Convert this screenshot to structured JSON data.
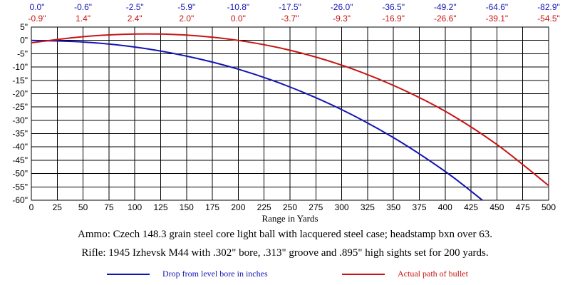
{
  "chart_data": {
    "type": "line",
    "xlabel": "Range in Yards",
    "ylabel": "",
    "xlim": [
      0,
      500
    ],
    "ylim": [
      -60,
      5
    ],
    "grid": true,
    "x_ticks": [
      0,
      25,
      50,
      75,
      100,
      125,
      150,
      175,
      200,
      225,
      250,
      275,
      300,
      325,
      350,
      375,
      400,
      425,
      450,
      475,
      500
    ],
    "y_ticks": [
      5,
      0,
      -5,
      -10,
      -15,
      -20,
      -25,
      -30,
      -35,
      -40,
      -45,
      -50,
      -55,
      -60
    ],
    "y_tick_labels": [
      "5\"",
      "0\"",
      "-5\"",
      "-10\"",
      "-15\"",
      "-20\"",
      "-25\"",
      "-30\"",
      "-35\"",
      "-40\"",
      "-45\"",
      "-50\"",
      "-55\"",
      "-60\""
    ],
    "top_row_drop": [
      "0.0\"",
      "-0.6\"",
      "-2.5\"",
      "-5.9\"",
      "-10.8\"",
      "-17.5\"",
      "-26.0\"",
      "-36.5\"",
      "-49.2\"",
      "-64.6\"",
      "-82.9\""
    ],
    "top_row_path": [
      "-0.9\"",
      "1.4\"",
      "2.4\"",
      "2.0\"",
      "0.0\"",
      "-3.7\"",
      "-9.3\"",
      "-16.9\"",
      "-26.6\"",
      "-39.1\"",
      "-54.5\""
    ],
    "top_row_x": [
      0,
      50,
      100,
      150,
      200,
      250,
      300,
      350,
      400,
      450,
      500
    ],
    "series": [
      {
        "name": "Drop from level bore in inches",
        "color": "#1414b4",
        "x": [
          0,
          50,
          100,
          150,
          200,
          250,
          300,
          350,
          400,
          436
        ],
        "y": [
          0.0,
          -0.6,
          -2.5,
          -5.9,
          -10.8,
          -17.5,
          -26.0,
          -36.5,
          -49.2,
          -60.0
        ]
      },
      {
        "name": "Actual path of bullet",
        "color": "#c81414",
        "x": [
          0,
          50,
          100,
          150,
          200,
          250,
          300,
          350,
          400,
          450,
          500
        ],
        "y": [
          -0.9,
          1.4,
          2.4,
          2.0,
          0.0,
          -3.7,
          -9.3,
          -16.9,
          -26.6,
          -39.1,
          -54.5
        ]
      }
    ]
  },
  "captions": {
    "ammo": "Ammo:  Czech 148.3 grain steel core light ball with lacquered steel case; headstamp bxn over 63.",
    "rifle": "Rifle:  1945 Izhevsk M44 with .302\" bore, .313\" groove and .895\" high sights set for 200 yards."
  },
  "legend": {
    "drop": "Drop from level bore in inches",
    "path": "Actual path of bullet"
  }
}
